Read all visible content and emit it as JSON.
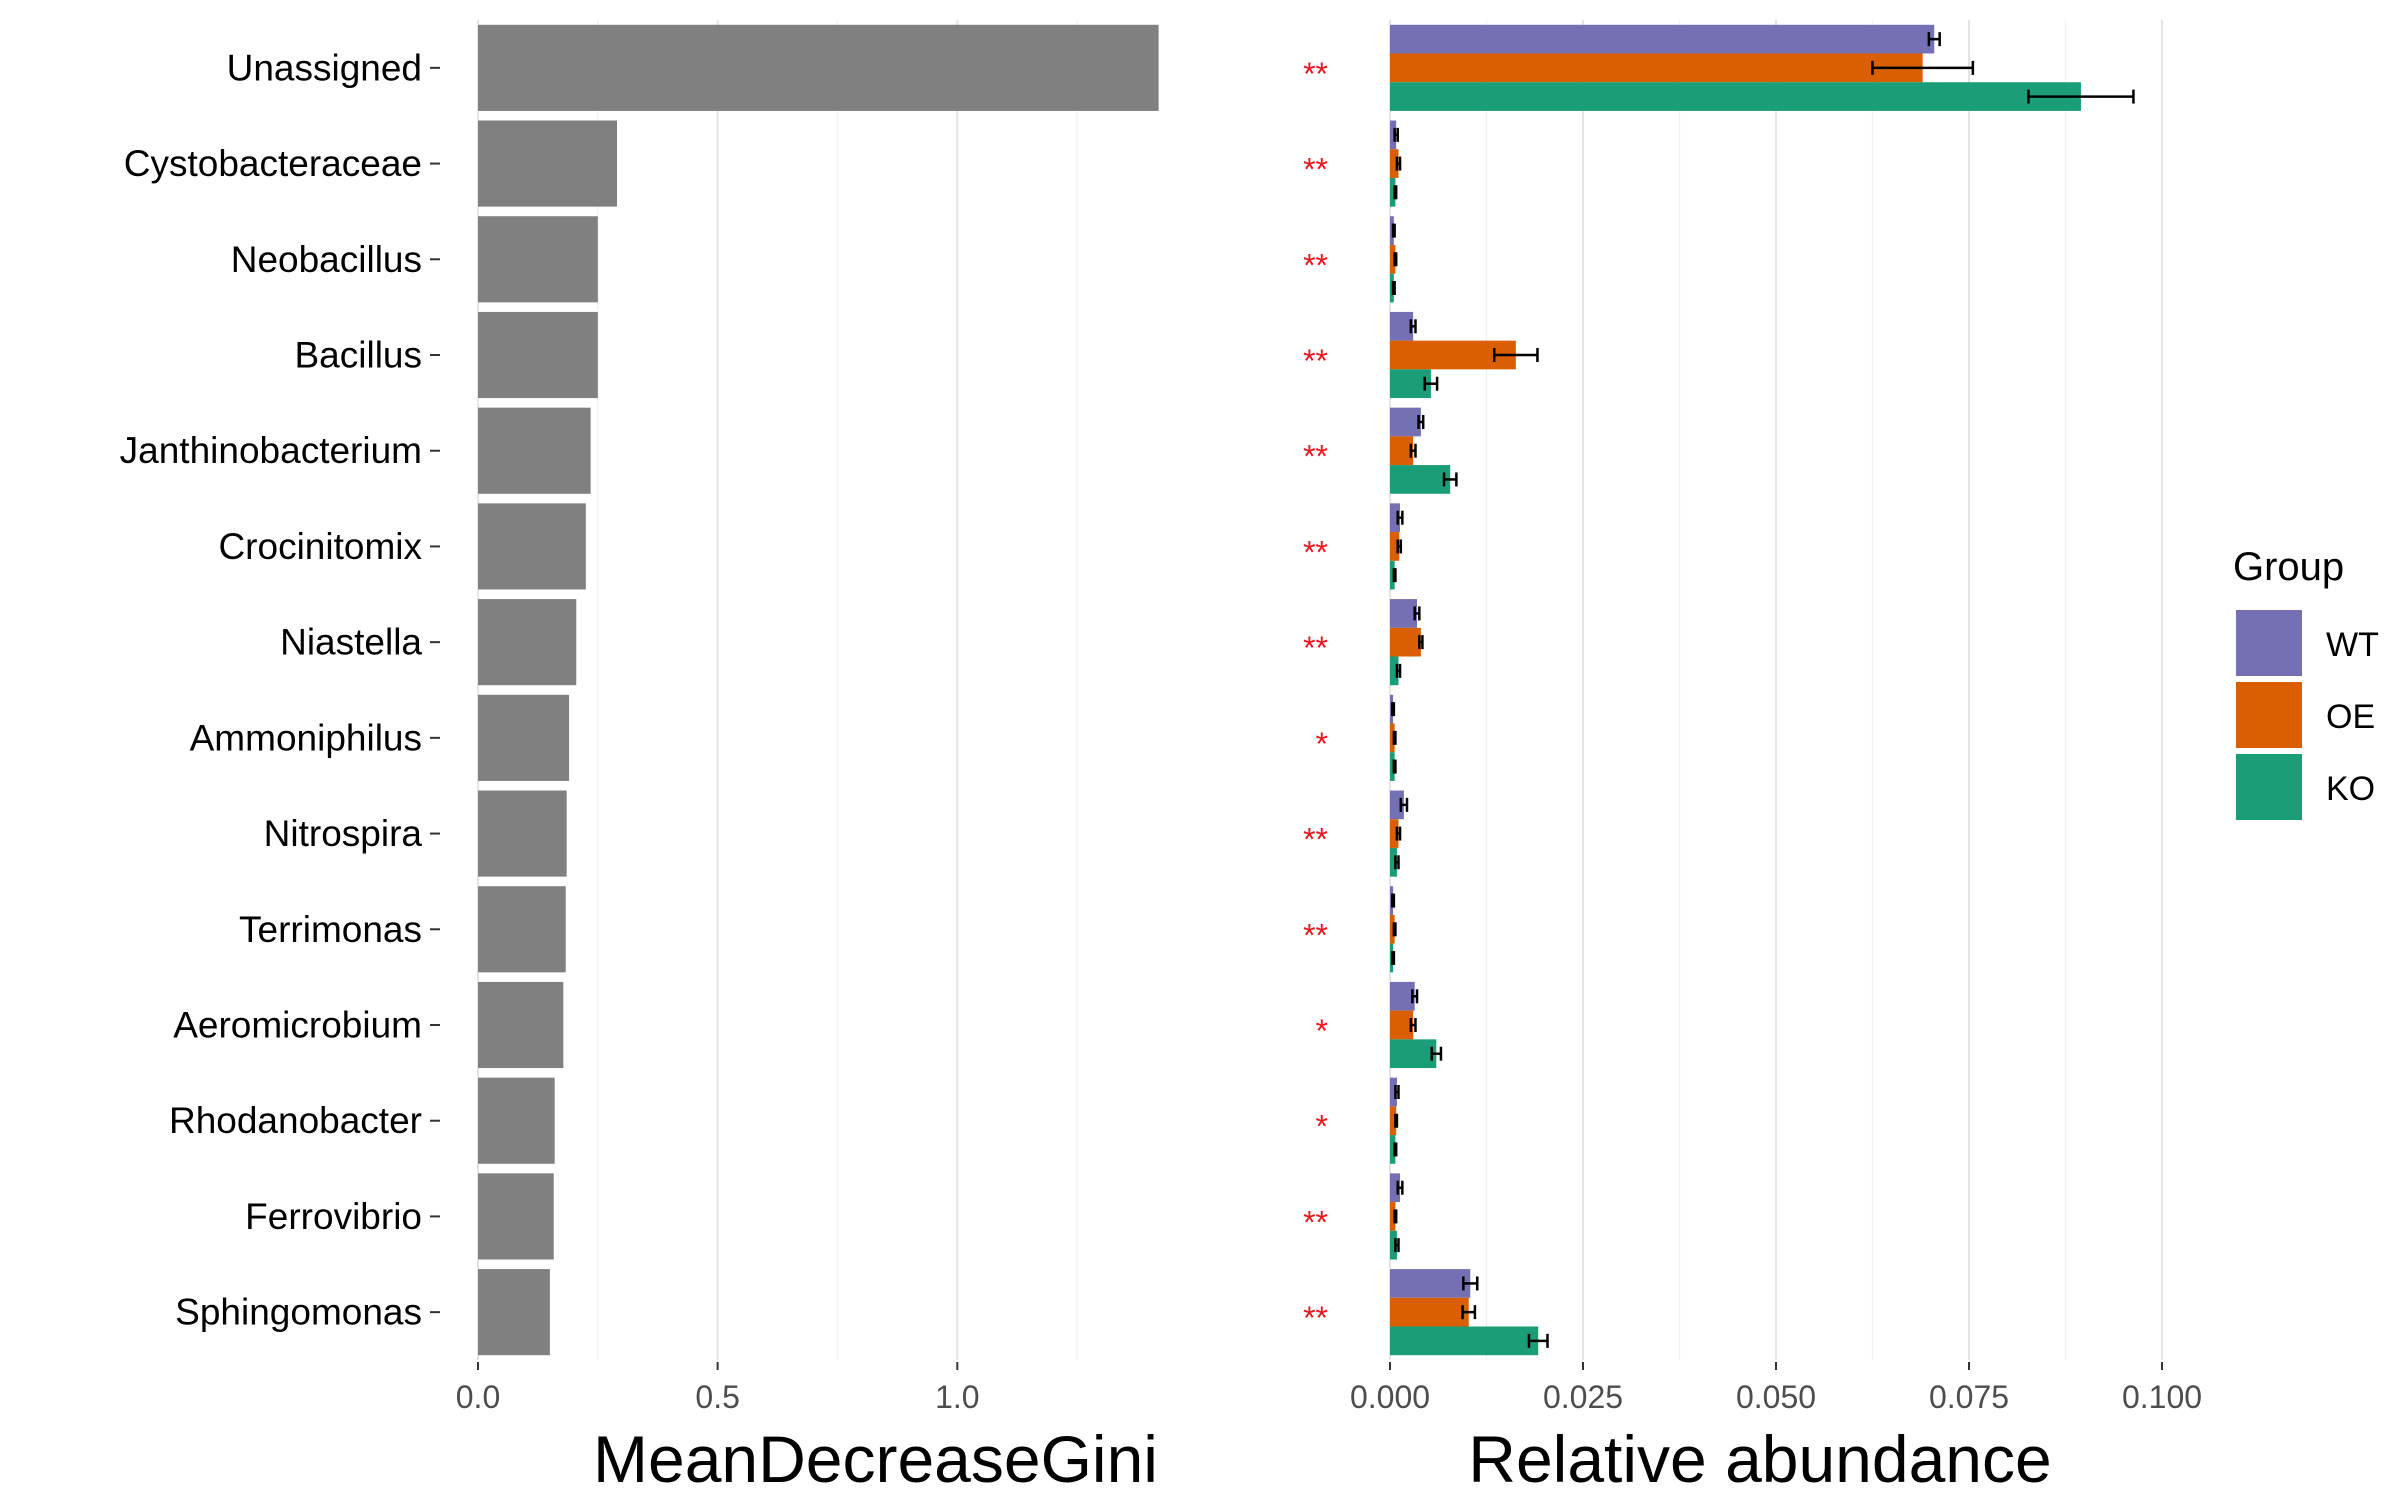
{
  "chart_data": [
    {
      "type": "bar",
      "orientation": "horizontal",
      "categories": [
        "Unassigned",
        "Cystobacteraceae",
        "Neobacillus",
        "Bacillus",
        "Janthinobacterium",
        "Crocinitomix",
        "Niastella",
        "Ammoniphilus",
        "Nitrospira",
        "Terrimonas",
        "Aeromicrobium",
        "Rhodanobacter",
        "Ferrovibrio",
        "Sphingomonas"
      ],
      "values": [
        1.42,
        0.29,
        0.25,
        0.25,
        0.235,
        0.225,
        0.205,
        0.19,
        0.185,
        0.183,
        0.178,
        0.16,
        0.158,
        0.15
      ],
      "xlabel": "MeanDecreaseGini",
      "ylabel": "",
      "xlim": [
        0,
        1.45
      ],
      "xticks": [
        "0.0",
        "0.5",
        "1.0"
      ],
      "bar_color": "#808080",
      "grid": true
    },
    {
      "type": "bar",
      "orientation": "horizontal",
      "categories": [
        "Unassigned",
        "Cystobacteraceae",
        "Neobacillus",
        "Bacillus",
        "Janthinobacterium",
        "Crocinitomix",
        "Niastella",
        "Ammoniphilus",
        "Nitrospira",
        "Terrimonas",
        "Aeromicrobium",
        "Rhodanobacter",
        "Ferrovibrio",
        "Sphingomonas"
      ],
      "series": [
        {
          "name": "WT",
          "color": "#7570b3",
          "values": [
            0.0705,
            0.0008,
            0.0005,
            0.003,
            0.004,
            0.0013,
            0.0035,
            0.0004,
            0.0018,
            0.0004,
            0.0032,
            0.0009,
            0.0013,
            0.0104
          ],
          "errors": [
            0.0007,
            0.0002,
            0.0001,
            0.0003,
            0.0003,
            0.0003,
            0.0003,
            0.0001,
            0.0004,
            0.0001,
            0.0003,
            0.0002,
            0.0003,
            0.0009
          ]
        },
        {
          "name": "OE",
          "color": "#d95f02",
          "values": [
            0.069,
            0.0011,
            0.0007,
            0.0163,
            0.003,
            0.0012,
            0.004,
            0.0006,
            0.0011,
            0.0006,
            0.003,
            0.0008,
            0.0007,
            0.0102
          ],
          "errors": [
            0.0065,
            0.0002,
            0.0001,
            0.0028,
            0.0003,
            0.0002,
            0.0002,
            0.0001,
            0.0002,
            0.0001,
            0.0003,
            0.0001,
            0.0001,
            0.0008
          ]
        },
        {
          "name": "KO",
          "color": "#1b9e77",
          "values": [
            0.0895,
            0.0007,
            0.0005,
            0.0053,
            0.0078,
            0.0006,
            0.0011,
            0.0006,
            0.0009,
            0.0004,
            0.006,
            0.0007,
            0.0009,
            0.0192
          ],
          "errors": [
            0.0068,
            0.0001,
            0.0001,
            0.0008,
            0.0008,
            0.0001,
            0.0002,
            0.0001,
            0.0002,
            0.0001,
            0.0006,
            0.0001,
            0.0002,
            0.0012
          ]
        }
      ],
      "significance": [
        "**",
        "**",
        "**",
        "**",
        "**",
        "**",
        "**",
        "*",
        "**",
        "**",
        "*",
        "*",
        "**",
        "**"
      ],
      "xlabel": "Relative abundance",
      "xlim": [
        0,
        0.1
      ],
      "xticks": [
        "0.000",
        "0.025",
        "0.050",
        "0.075",
        "0.100"
      ],
      "legend": {
        "title": "Group",
        "position": "right"
      },
      "grid": true
    }
  ]
}
